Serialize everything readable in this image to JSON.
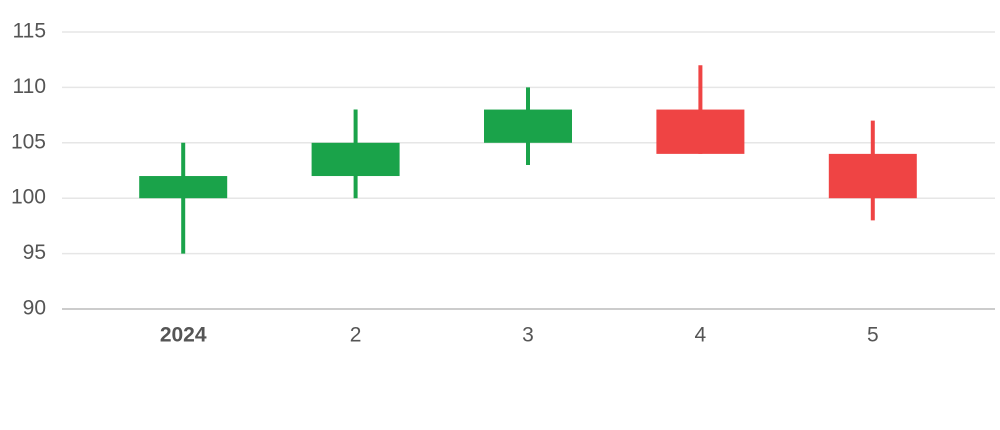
{
  "chart_data": {
    "type": "candlestick",
    "categories": [
      "2024",
      "2",
      "3",
      "4",
      "5"
    ],
    "open": [
      100,
      102,
      105,
      108,
      104
    ],
    "high": [
      105,
      108,
      110,
      112,
      107
    ],
    "low": [
      95,
      100,
      103,
      104,
      98
    ],
    "close": [
      102,
      105,
      108,
      104,
      100
    ],
    "up_color": "#1aa34a",
    "down_color": "#ef4444",
    "ylim": [
      90,
      115
    ],
    "yticks": [
      90,
      95,
      100,
      105,
      110,
      115
    ],
    "grid": true
  }
}
